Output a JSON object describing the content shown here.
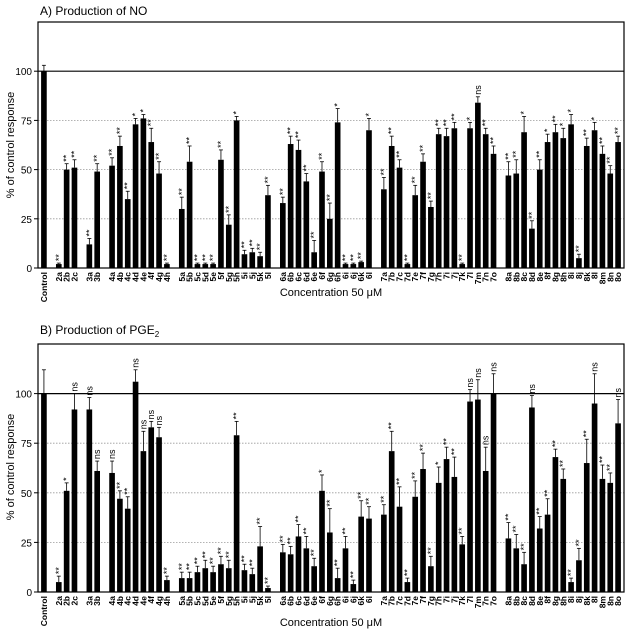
{
  "chart_data": [
    {
      "type": "bar",
      "title": "A) Production of NO",
      "xlabel": "Concentration 50 μM",
      "ylabel": "% of control response",
      "ylim": [
        0,
        125
      ],
      "yticks": [
        0,
        25,
        50,
        75,
        100
      ],
      "reference_lines": [
        25,
        50,
        75,
        100
      ],
      "bar_color": "#000000",
      "groups": [
        [
          "Control"
        ],
        [
          "2a",
          "2b",
          "2c"
        ],
        [
          "3a",
          "3b"
        ],
        [
          "4a",
          "4b",
          "4c",
          "4d",
          "4e",
          "4f",
          "4g",
          "4h"
        ],
        [
          "5a",
          "5b",
          "5c",
          "5d",
          "5e",
          "5f",
          "5g",
          "5h",
          "5i",
          "5j",
          "5k",
          "5l"
        ],
        [
          "6a",
          "6b",
          "6c",
          "6d",
          "6e",
          "6f",
          "6g",
          "6h",
          "6i",
          "6j",
          "6k",
          "6l"
        ],
        [
          "7a",
          "7b",
          "7c",
          "7d",
          "7e",
          "7f",
          "7g",
          "7h",
          "7i",
          "7j",
          "7k",
          "7l",
          "7m",
          "7n",
          "7o"
        ],
        [
          "8a",
          "8b",
          "8c",
          "8d",
          "8e",
          "8f",
          "8g",
          "8h",
          "8i",
          "8j",
          "8k",
          "8l",
          "8m",
          "8n",
          "8o"
        ]
      ],
      "values": [
        100,
        2,
        50,
        51,
        12,
        49,
        52,
        62,
        35,
        73,
        76,
        64,
        48,
        2,
        30,
        54,
        2,
        2,
        2,
        55,
        22,
        75,
        7,
        8,
        6,
        37,
        33,
        63,
        60,
        44,
        8,
        49,
        25,
        74,
        2,
        2,
        3,
        70,
        40,
        62,
        51,
        2,
        37,
        54,
        31,
        68,
        67,
        71,
        2,
        71,
        84,
        68,
        58,
        47,
        48,
        69,
        20,
        50,
        64,
        69,
        66,
        73,
        5,
        62,
        70,
        58,
        48,
        64
      ],
      "errors": [
        3,
        0.5,
        3,
        4,
        3,
        4,
        4,
        5,
        4,
        3,
        2,
        7,
        6,
        0.5,
        6,
        8,
        0.5,
        0.5,
        0.5,
        5,
        5,
        2,
        2,
        2,
        2,
        5,
        3,
        4,
        5,
        4,
        6,
        5,
        8,
        7,
        0.5,
        0.5,
        0.5,
        6,
        6,
        5,
        4,
        0.5,
        5,
        4,
        3,
        3,
        4,
        3,
        0.5,
        3,
        3,
        3,
        4,
        7,
        7,
        8,
        4,
        5,
        4,
        4,
        5,
        5,
        2,
        4,
        4,
        4,
        4,
        3
      ],
      "significance": [
        "",
        "**",
        "**",
        "**",
        "**",
        "**",
        "**",
        "**",
        "**",
        "*",
        "*",
        "**",
        "**",
        "**",
        "**",
        "**",
        "**",
        "**",
        "**",
        "**",
        "**",
        "*",
        "**",
        "**",
        "**",
        "**",
        "**",
        "**",
        "**",
        "**",
        "**",
        "**",
        "**",
        "*",
        "**",
        "**",
        "**",
        "*",
        "**",
        "**",
        "**",
        "**",
        "**",
        "**",
        "**",
        "**",
        "**",
        "**",
        "**",
        "*",
        "ns",
        "**",
        "**",
        "**",
        "**",
        "*",
        "**",
        "**",
        "*",
        "**",
        "*",
        "*",
        "**",
        "**",
        "*",
        "**",
        "**",
        "**"
      ]
    },
    {
      "type": "bar",
      "title": "B) Production of PGE",
      "title_sub": "2",
      "xlabel": "Concentration 50 μM",
      "ylabel": "% of control response",
      "ylim": [
        0,
        125
      ],
      "yticks": [
        0,
        25,
        50,
        75,
        100
      ],
      "reference_lines": [
        25,
        50,
        75,
        100
      ],
      "bar_color": "#000000",
      "groups": [
        [
          "Control"
        ],
        [
          "2a",
          "2b",
          "2c"
        ],
        [
          "3a",
          "3b"
        ],
        [
          "4a",
          "4b",
          "4c",
          "4d",
          "4e",
          "4f",
          "4g",
          "4h"
        ],
        [
          "5a",
          "5b",
          "5c",
          "5d",
          "5e",
          "5f",
          "5g",
          "5h",
          "5i",
          "5j",
          "5k",
          "5l"
        ],
        [
          "6a",
          "6b",
          "6c",
          "6d",
          "6e",
          "6f",
          "6g",
          "6h",
          "6i",
          "6j",
          "6k",
          "6l"
        ],
        [
          "7a",
          "7b",
          "7c",
          "7d",
          "7e",
          "7f",
          "7g",
          "7h",
          "7i",
          "7j",
          "7k",
          "7l",
          "7m",
          "7n",
          "7o"
        ],
        [
          "8a",
          "8b",
          "8c",
          "8d",
          "8e",
          "8f",
          "8g",
          "8h",
          "8i",
          "8j",
          "8k",
          "8l",
          "8m",
          "8n",
          "8o"
        ]
      ],
      "values": [
        100,
        5,
        51,
        92,
        92,
        61,
        60,
        47,
        42,
        106,
        71,
        83,
        78,
        6,
        7,
        7,
        10,
        12,
        10,
        14,
        12,
        79,
        11,
        9,
        23,
        2,
        20,
        19,
        28,
        22,
        13,
        51,
        30,
        7,
        22,
        4,
        38,
        37,
        39,
        71,
        43,
        5,
        48,
        62,
        13,
        55,
        67,
        58,
        24,
        96,
        97,
        61,
        100,
        27,
        22,
        14,
        93,
        32,
        39,
        68,
        57,
        5,
        16,
        65,
        95,
        57,
        55,
        85
      ],
      "errors": [
        12,
        3,
        4,
        8,
        6,
        5,
        6,
        4,
        6,
        6,
        10,
        3,
        5,
        2,
        3,
        3,
        3,
        4,
        3,
        4,
        4,
        7,
        3,
        3,
        10,
        1,
        4,
        4,
        6,
        6,
        4,
        8,
        12,
        5,
        6,
        2,
        8,
        6,
        5,
        10,
        10,
        2,
        8,
        8,
        5,
        8,
        6,
        10,
        4,
        6,
        10,
        12,
        10,
        8,
        7,
        6,
        6,
        6,
        8,
        4,
        5,
        2,
        6,
        12,
        15,
        7,
        5,
        12
      ],
      "significance": [
        "",
        "**",
        "*",
        "ns",
        "ns",
        "ns",
        "ns",
        "**",
        "**",
        "ns",
        "ns",
        "ns",
        "ns",
        "**",
        "**",
        "**",
        "**",
        "**",
        "**",
        "**",
        "**",
        "**",
        "**",
        "**",
        "**",
        "**",
        "**",
        "**",
        "**",
        "**",
        "**",
        "*",
        "**",
        "**",
        "**",
        "**",
        "**",
        "**",
        "**",
        "**",
        "**",
        "**",
        "**",
        "**",
        "**",
        "*",
        "**",
        "**",
        "**",
        "ns",
        "ns",
        "ns",
        "ns",
        "**",
        "**",
        "**",
        "ns",
        "**",
        "**",
        "**",
        "**",
        "**",
        "**",
        "**",
        "ns",
        "**",
        "**",
        "ns"
      ]
    }
  ]
}
